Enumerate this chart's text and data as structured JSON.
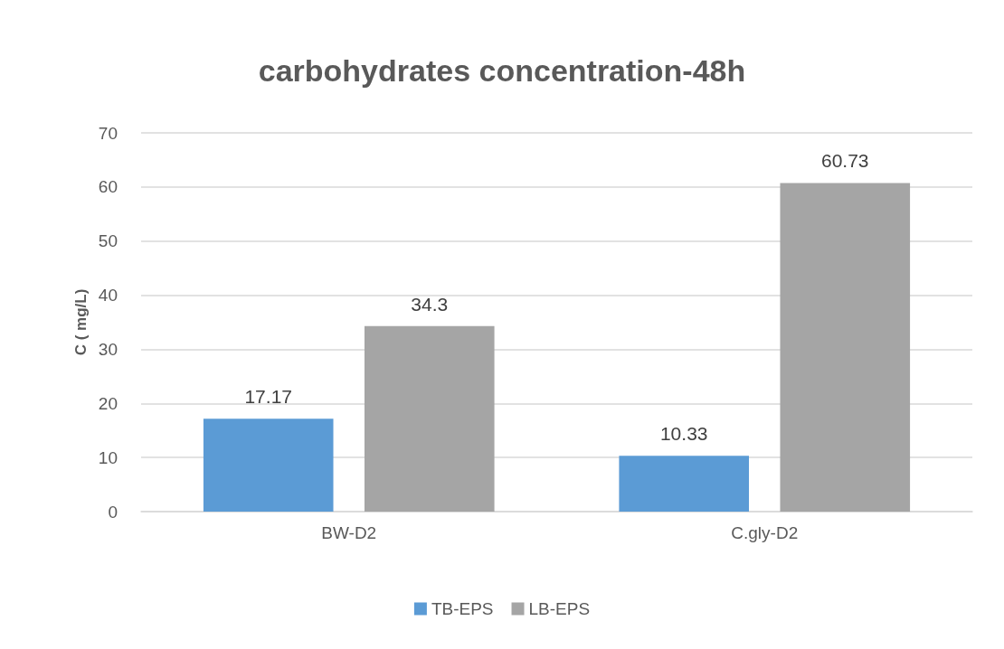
{
  "chart_data": {
    "type": "bar",
    "title": "carbohydrates concentration-48h",
    "ylabel": "C ( mg/L)",
    "categories": [
      "BW-D2",
      "C.gly-D2"
    ],
    "series": [
      {
        "name": "TB-EPS",
        "color": "#5b9bd5",
        "values": [
          17.17,
          10.33
        ]
      },
      {
        "name": "LB-EPS",
        "color": "#a5a5a5",
        "values": [
          34.3,
          60.73
        ]
      }
    ],
    "ylim": [
      0,
      70
    ],
    "yticks": [
      0,
      10,
      20,
      30,
      40,
      50,
      60,
      70
    ],
    "grid": "y",
    "legend": "bottom",
    "data_labels": true
  }
}
